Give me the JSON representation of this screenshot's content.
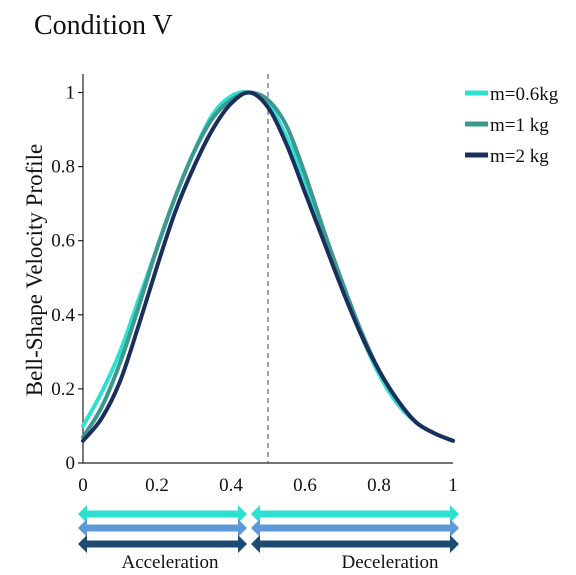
{
  "chart_data": {
    "type": "line",
    "title": "Condition V",
    "xlabel": "",
    "ylabel": "Bell-Shape Velocity Profile",
    "xlim": [
      0,
      1
    ],
    "ylim": [
      0,
      1.05
    ],
    "xticks": [
      {
        "v": 0,
        "label": "0"
      },
      {
        "v": 0.2,
        "label": "0.2"
      },
      {
        "v": 0.4,
        "label": "0.4"
      },
      {
        "v": 0.6,
        "label": "0.6"
      },
      {
        "v": 0.8,
        "label": "0.8"
      },
      {
        "v": 1,
        "label": "1"
      }
    ],
    "yticks": [
      {
        "v": 0,
        "label": "0"
      },
      {
        "v": 0.2,
        "label": "0.2"
      },
      {
        "v": 0.4,
        "label": "0.4"
      },
      {
        "v": 0.6,
        "label": "0.6"
      },
      {
        "v": 0.8,
        "label": "0.8"
      },
      {
        "v": 1,
        "label": "1"
      }
    ],
    "grid": false,
    "legend": "top-right",
    "divider_x": 0.5,
    "series": [
      {
        "name": "m=0.6kg",
        "color": "#2ee0cf",
        "x": [
          0,
          0.05,
          0.1,
          0.15,
          0.2,
          0.25,
          0.3,
          0.35,
          0.4,
          0.45,
          0.5,
          0.55,
          0.6,
          0.65,
          0.7,
          0.75,
          0.8,
          0.85,
          0.9,
          0.95,
          1.0
        ],
        "y": [
          0.1,
          0.19,
          0.3,
          0.44,
          0.58,
          0.72,
          0.84,
          0.94,
          0.99,
          1.0,
          0.97,
          0.88,
          0.76,
          0.62,
          0.48,
          0.35,
          0.24,
          0.16,
          0.11,
          0.08,
          0.06
        ]
      },
      {
        "name": "m=1 kg",
        "color": "#3d9890",
        "x": [
          0,
          0.05,
          0.1,
          0.15,
          0.2,
          0.25,
          0.3,
          0.35,
          0.4,
          0.45,
          0.5,
          0.55,
          0.6,
          0.65,
          0.7,
          0.75,
          0.8,
          0.85,
          0.9,
          0.95,
          1.0
        ],
        "y": [
          0.07,
          0.15,
          0.27,
          0.42,
          0.58,
          0.72,
          0.84,
          0.93,
          0.98,
          1.0,
          0.98,
          0.91,
          0.78,
          0.63,
          0.49,
          0.36,
          0.25,
          0.17,
          0.11,
          0.08,
          0.06
        ]
      },
      {
        "name": "m=2 kg",
        "color": "#1c2f5c",
        "x": [
          0,
          0.05,
          0.1,
          0.15,
          0.2,
          0.25,
          0.3,
          0.35,
          0.4,
          0.45,
          0.5,
          0.55,
          0.6,
          0.65,
          0.7,
          0.75,
          0.8,
          0.85,
          0.9,
          0.95,
          1.0
        ],
        "y": [
          0.06,
          0.12,
          0.22,
          0.37,
          0.53,
          0.68,
          0.8,
          0.9,
          0.97,
          1.0,
          0.96,
          0.86,
          0.73,
          0.6,
          0.47,
          0.35,
          0.25,
          0.17,
          0.11,
          0.08,
          0.06
        ]
      }
    ]
  },
  "phases": {
    "acceleration": "Acceleration",
    "deceleration": "Deceleration",
    "arrow_colors": [
      "#2ee0cf",
      "#5b9ad6",
      "#1f4a72"
    ]
  }
}
